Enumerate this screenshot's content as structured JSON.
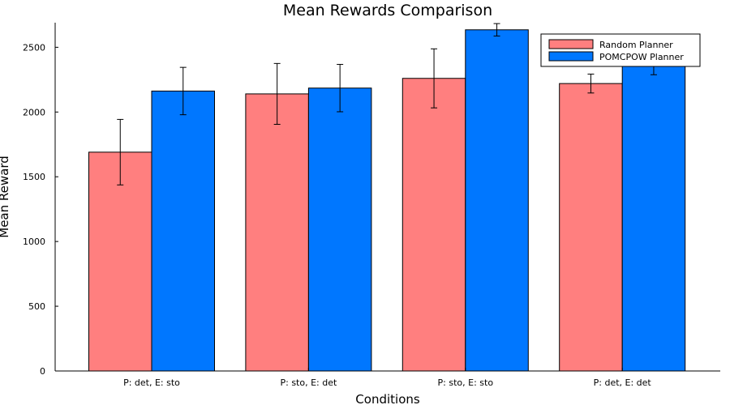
{
  "chart_data": {
    "type": "bar",
    "title": "Mean Rewards Comparison",
    "xlabel": "Conditions",
    "ylabel": "Mean Reward",
    "categories": [
      "P: det, E: sto",
      "P: sto, E: det",
      "P: sto, E: sto",
      "P: det, E: det"
    ],
    "series": [
      {
        "name": "Random Planner",
        "color": "#ff7f7f",
        "values": [
          1690,
          2140,
          2260,
          2220
        ],
        "error": [
          253,
          235,
          228,
          73
        ]
      },
      {
        "name": "POMCPOW Planner",
        "color": "#0077ff",
        "values": [
          2162,
          2185,
          2635,
          2380
        ],
        "error": [
          183,
          183,
          48,
          92
        ]
      }
    ],
    "ylim": [
      0,
      2690
    ],
    "yticks": [
      0,
      500,
      1000,
      1500,
      2000,
      2500
    ],
    "grid": false,
    "legend_position": "top-right"
  }
}
